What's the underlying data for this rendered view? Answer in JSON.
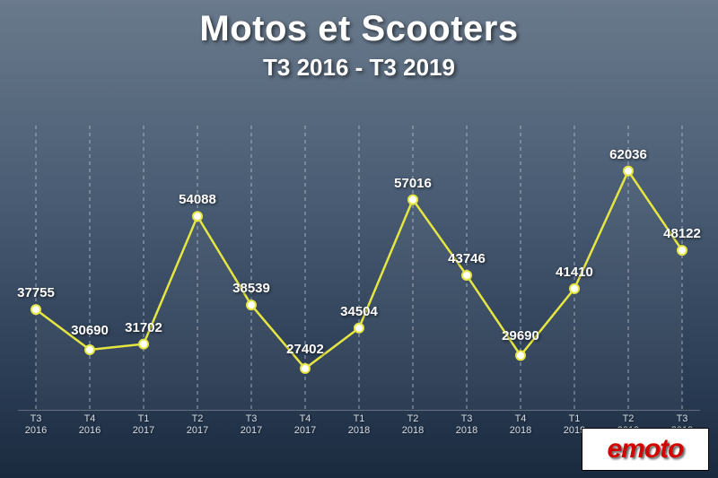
{
  "title": "Motos et Scooters",
  "subtitle": "T3 2016 - T3 2019",
  "logo_text": "emoto",
  "chart": {
    "type": "line",
    "line_color": "#e6e642",
    "marker_fill": "#ffffff",
    "marker_stroke": "#e6e642",
    "marker_radius": 5,
    "grid_color": "#c9d1da",
    "grid_dash": "4 4",
    "background_gradient": [
      "#6a7a8c",
      "#1a2a3e"
    ],
    "y_min": 20000,
    "y_max": 70000,
    "label_fontsize": 15,
    "label_color": "#ffffff",
    "tick_fontsize": 11,
    "tick_color": "#d5dde6",
    "series": [
      {
        "categories_line1": [
          "T3",
          "T4",
          "T1",
          "T2",
          "T3",
          "T4",
          "T1",
          "T2",
          "T3",
          "T4",
          "T1",
          "T2",
          "T3"
        ],
        "categories_line2": [
          "2016",
          "2016",
          "2017",
          "2017",
          "2017",
          "2017",
          "2018",
          "2018",
          "2018",
          "2018",
          "2019",
          "2019",
          "2019"
        ],
        "values": [
          37755,
          30690,
          31702,
          54088,
          38539,
          27402,
          34504,
          57016,
          43746,
          29690,
          41410,
          62036,
          48122
        ],
        "label_offsets_y": [
          -10,
          -13,
          -10,
          -10,
          -10,
          -13,
          -10,
          -10,
          -10,
          -13,
          -10,
          -10,
          -10
        ]
      }
    ]
  }
}
